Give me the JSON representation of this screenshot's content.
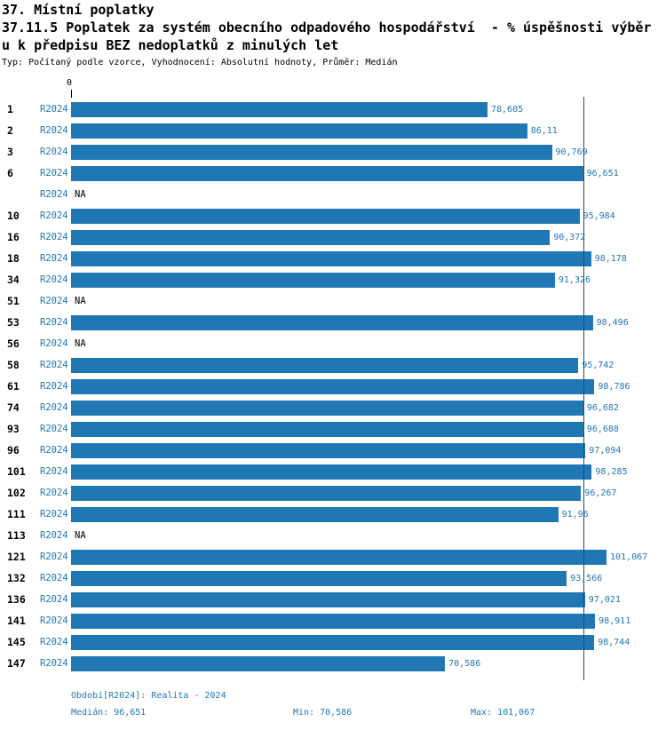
{
  "colors": {
    "bar": "#1f77b4",
    "accent_text": "#1f77b4",
    "median_line": "#1d4f75"
  },
  "header": {
    "title_line1": "37. Místní poplatky",
    "title_line2": "37.11.5 Poplatek za systém obecního odpadového hospodářství  - % úspěšnosti výběr",
    "title_line3": "u k předpisu BEZ nedoplatků z minulých let",
    "meta": "Typ: Počítaný podle vzorce, Vyhodnocení: Absolutní hodnoty, Průměr: Medián"
  },
  "chart_data": {
    "type": "bar",
    "orientation": "horizontal",
    "title": "37.11.5 Poplatek za systém obecního odpadového hospodářství - % úspěšnosti výběru k předpisu BEZ nedoplatků z minulých let",
    "xlabel": "",
    "ylabel": "",
    "unit": "%",
    "axis_origin_label": "0",
    "xlim": [
      0,
      112
    ],
    "grid": false,
    "legend_position": "none",
    "series_name": "R2024",
    "median_value": 96.651,
    "stats": {
      "median": 96.651,
      "min": 70.586,
      "max": 101.067
    },
    "rows": [
      {
        "id": "1",
        "period": "R2024",
        "value": 78.605,
        "display": "78,605"
      },
      {
        "id": "2",
        "period": "R2024",
        "value": 86.11,
        "display": "86,11"
      },
      {
        "id": "3",
        "period": "R2024",
        "value": 90.769,
        "display": "90,769"
      },
      {
        "id": "6",
        "period": "R2024",
        "value": 96.651,
        "display": "96,651"
      },
      {
        "id": "",
        "period": "R2024",
        "value": null,
        "display": "NA"
      },
      {
        "id": "10",
        "period": "R2024",
        "value": 95.984,
        "display": "95,984"
      },
      {
        "id": "16",
        "period": "R2024",
        "value": 90.372,
        "display": "90,372"
      },
      {
        "id": "18",
        "period": "R2024",
        "value": 98.178,
        "display": "98,178"
      },
      {
        "id": "34",
        "period": "R2024",
        "value": 91.326,
        "display": "91,326"
      },
      {
        "id": "51",
        "period": "R2024",
        "value": null,
        "display": "NA"
      },
      {
        "id": "53",
        "period": "R2024",
        "value": 98.496,
        "display": "98,496"
      },
      {
        "id": "56",
        "period": "R2024",
        "value": null,
        "display": "NA"
      },
      {
        "id": "58",
        "period": "R2024",
        "value": 95.742,
        "display": "95,742"
      },
      {
        "id": "61",
        "period": "R2024",
        "value": 98.786,
        "display": "98,786"
      },
      {
        "id": "74",
        "period": "R2024",
        "value": 96.682,
        "display": "96,682"
      },
      {
        "id": "93",
        "period": "R2024",
        "value": 96.688,
        "display": "96,688"
      },
      {
        "id": "96",
        "period": "R2024",
        "value": 97.094,
        "display": "97,094"
      },
      {
        "id": "101",
        "period": "R2024",
        "value": 98.285,
        "display": "98,285"
      },
      {
        "id": "102",
        "period": "R2024",
        "value": 96.267,
        "display": "96,267"
      },
      {
        "id": "111",
        "period": "R2024",
        "value": 91.96,
        "display": "91,96"
      },
      {
        "id": "113",
        "period": "R2024",
        "value": null,
        "display": "NA"
      },
      {
        "id": "121",
        "period": "R2024",
        "value": 101.067,
        "display": "101,067"
      },
      {
        "id": "132",
        "period": "R2024",
        "value": 93.566,
        "display": "93,566"
      },
      {
        "id": "136",
        "period": "R2024",
        "value": 97.021,
        "display": "97,021"
      },
      {
        "id": "141",
        "period": "R2024",
        "value": 98.911,
        "display": "98,911"
      },
      {
        "id": "145",
        "period": "R2024",
        "value": 98.744,
        "display": "98,744"
      },
      {
        "id": "147",
        "period": "R2024",
        "value": 70.586,
        "display": "70,586"
      }
    ]
  },
  "footer": {
    "period_label": "Období[R2024]: Realita - 2024",
    "median_label": "Medián: 96,651",
    "min_label": "Min: 70,586",
    "max_label": "Max: 101,067"
  }
}
